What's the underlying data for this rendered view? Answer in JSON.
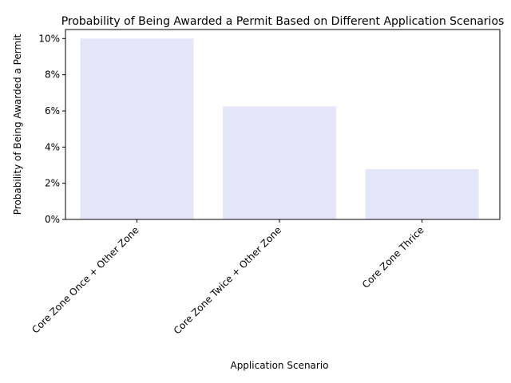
{
  "chart_data": {
    "type": "bar",
    "title": "Probability of Being Awarded a Permit Based on Different Application Scenarios",
    "xlabel": "Application Scenario",
    "ylabel": "Probability of Being Awarded a Permit",
    "categories": [
      "Core Zone Once + Other Zone",
      "Core Zone Twice + Other Zone",
      "Core Zone Thrice"
    ],
    "values": [
      10.0,
      6.25,
      2.78
    ],
    "value_unit": "%",
    "ylim": [
      0,
      10.5
    ],
    "yticks": [
      "0%",
      "2%",
      "4%",
      "6%",
      "8%",
      "10%"
    ],
    "bar_color": "#e6e6fa",
    "grid": false,
    "legend": "none"
  }
}
